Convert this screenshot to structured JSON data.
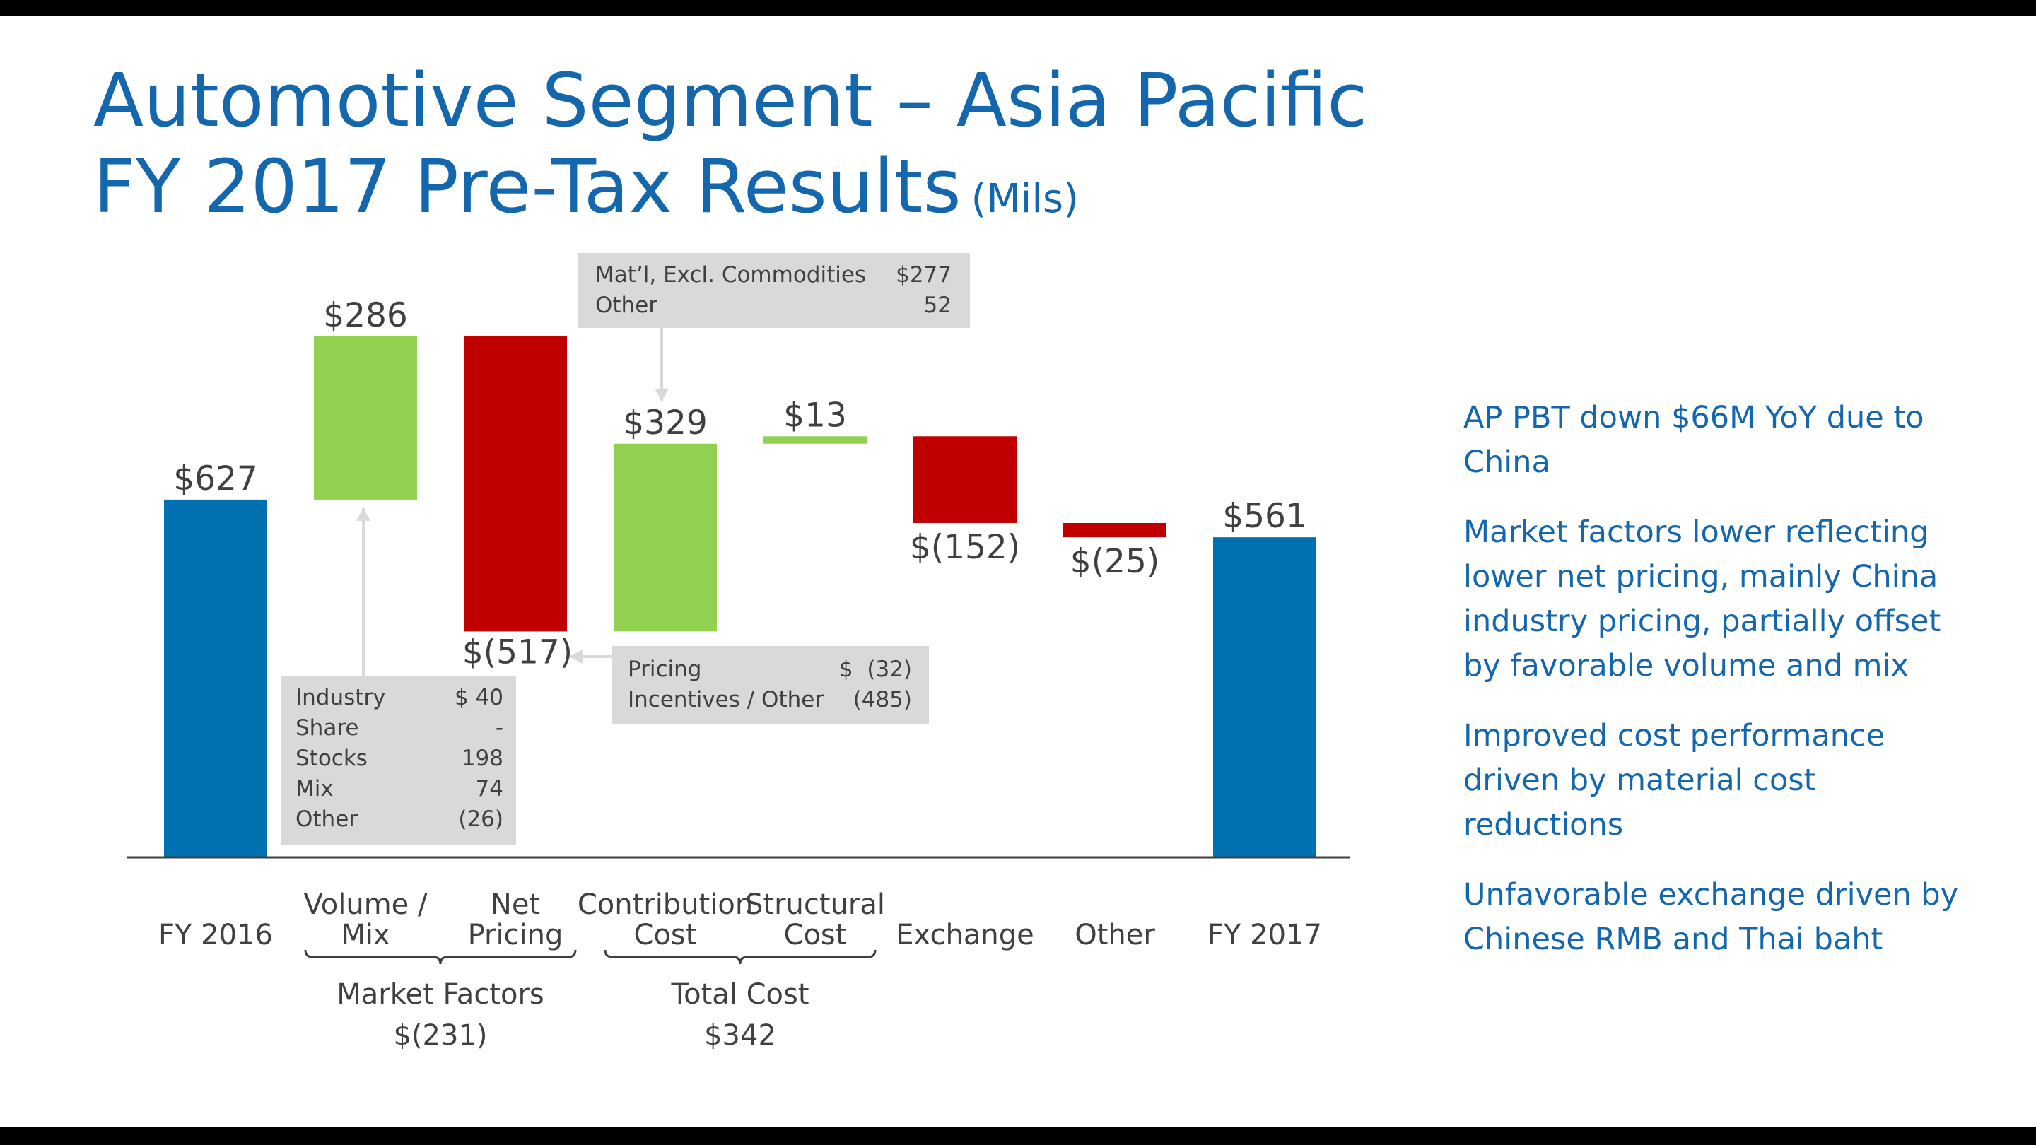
{
  "header": {
    "title_line1": "Automotive Segment – Asia Pacific",
    "title_line2": "FY 2017 Pre-Tax Results",
    "unit": "(Mils)"
  },
  "colors": {
    "total": "#0070b0",
    "increase": "#92d050",
    "decrease": "#c00000",
    "text": "#1467ad",
    "box": "#d9d9d9",
    "arrow": "#d9d9d9"
  },
  "chart_data": {
    "type": "bar",
    "subtype": "waterfall",
    "categories": [
      "FY 2016",
      "Volume / Mix",
      "Net Pricing",
      "Contribution Cost",
      "Structural Cost",
      "Exchange",
      "Other",
      "FY 2017"
    ],
    "category_lines": [
      [
        "FY 2016"
      ],
      [
        "Volume /",
        "Mix"
      ],
      [
        "Net",
        "Pricing"
      ],
      [
        "Contribution",
        "Cost"
      ],
      [
        "Structural",
        "Cost"
      ],
      [
        "Exchange"
      ],
      [
        "Other"
      ],
      [
        "FY 2017"
      ]
    ],
    "values": [
      627,
      286,
      -517,
      329,
      13,
      -152,
      -25,
      561
    ],
    "kinds": [
      "total",
      "increase",
      "decrease",
      "increase",
      "increase",
      "decrease",
      "decrease",
      "total"
    ],
    "value_labels": [
      "$627",
      "$286",
      "$(517)",
      "$329",
      "$13",
      "$(152)",
      "$(25)",
      "$561"
    ],
    "groups": [
      {
        "label": "Market Factors",
        "value": "$(231)",
        "from": 1,
        "to": 2
      },
      {
        "label": "Total Cost",
        "value": "$342",
        "from": 3,
        "to": 4
      }
    ],
    "ylim": [
      0,
      900
    ]
  },
  "detail_boxes": {
    "volume_mix": {
      "rows": [
        {
          "label": "Industry",
          "value": "$ 40"
        },
        {
          "label": "Share",
          "value": "-"
        },
        {
          "label": "Stocks",
          "value": "198"
        },
        {
          "label": "Mix",
          "value": "74"
        },
        {
          "label": "Other",
          "value": "(26)"
        }
      ]
    },
    "net_pricing": {
      "rows": [
        {
          "label": "Pricing",
          "value": "$  (32)"
        },
        {
          "label": "Incentives / Other",
          "value": "(485)"
        }
      ]
    },
    "contribution_cost": {
      "rows": [
        {
          "label": "Mat’l, Excl. Commodities",
          "value": "$277"
        },
        {
          "label": "Other",
          "value": "52"
        }
      ]
    }
  },
  "bullets": [
    "AP PBT down $66M YoY due to China",
    "Market factors lower reflecting lower net pricing, mainly China industry pricing, partially offset by favorable volume and mix",
    "Improved cost performance driven by material cost reductions",
    "Unfavorable exchange driven by Chinese RMB and Thai baht"
  ]
}
